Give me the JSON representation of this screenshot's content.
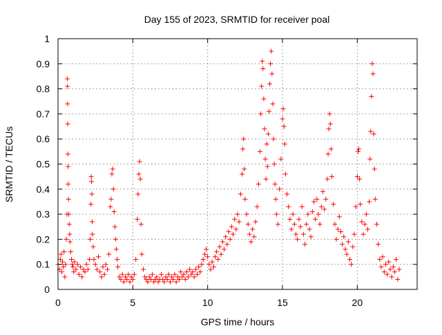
{
  "chart_data": {
    "type": "scatter",
    "title": "Day 155 of 2023, SRMTID for receiver poal",
    "xlabel": "GPS time / hours",
    "ylabel": "SRMTID / TECUs",
    "xlim": [
      0,
      24
    ],
    "ylim": [
      0,
      1
    ],
    "x_ticks": [
      0,
      5,
      10,
      15,
      20
    ],
    "x_tick_labels": [
      "0",
      "5",
      "10",
      "15",
      "20"
    ],
    "y_ticks": [
      0,
      0.1,
      0.2,
      0.3,
      0.4,
      0.5,
      0.6,
      0.7,
      0.8,
      0.9,
      1
    ],
    "y_tick_labels": [
      "0",
      "0.1",
      "0.2",
      "0.3",
      "0.4",
      "0.5",
      "0.6",
      "0.7",
      "0.8",
      "0.9",
      "1"
    ],
    "grid": true,
    "marker": "+",
    "color": "#ff0000",
    "series": [
      {
        "name": "SRMTID",
        "points": [
          [
            0.0,
            0.1
          ],
          [
            0.1,
            0.08
          ],
          [
            0.15,
            0.12
          ],
          [
            0.2,
            0.14
          ],
          [
            0.25,
            0.07
          ],
          [
            0.3,
            0.11
          ],
          [
            0.35,
            0.09
          ],
          [
            0.4,
            0.15
          ],
          [
            0.45,
            0.05
          ],
          [
            0.5,
            0.1
          ],
          [
            0.55,
            0.2
          ],
          [
            0.6,
            0.3
          ],
          [
            0.62,
            0.84
          ],
          [
            0.63,
            0.81
          ],
          [
            0.64,
            0.74
          ],
          [
            0.65,
            0.66
          ],
          [
            0.66,
            0.54
          ],
          [
            0.67,
            0.49
          ],
          [
            0.68,
            0.42
          ],
          [
            0.7,
            0.36
          ],
          [
            0.72,
            0.3
          ],
          [
            0.75,
            0.26
          ],
          [
            0.78,
            0.22
          ],
          [
            0.8,
            0.19
          ],
          [
            0.85,
            0.15
          ],
          [
            0.9,
            0.12
          ],
          [
            0.95,
            0.1
          ],
          [
            1.0,
            0.09
          ],
          [
            1.05,
            0.07
          ],
          [
            1.1,
            0.11
          ],
          [
            1.2,
            0.08
          ],
          [
            1.3,
            0.1
          ],
          [
            1.4,
            0.06
          ],
          [
            1.5,
            0.09
          ],
          [
            1.6,
            0.05
          ],
          [
            1.7,
            0.08
          ],
          [
            1.8,
            0.07
          ],
          [
            1.9,
            0.1
          ],
          [
            2.0,
            0.08
          ],
          [
            2.1,
            0.12
          ],
          [
            2.15,
            0.2
          ],
          [
            2.2,
            0.34
          ],
          [
            2.22,
            0.45
          ],
          [
            2.24,
            0.43
          ],
          [
            2.26,
            0.38
          ],
          [
            2.28,
            0.27
          ],
          [
            2.3,
            0.22
          ],
          [
            2.35,
            0.17
          ],
          [
            2.4,
            0.12
          ],
          [
            2.5,
            0.1
          ],
          [
            2.6,
            0.08
          ],
          [
            2.7,
            0.13
          ],
          [
            2.8,
            0.07
          ],
          [
            2.9,
            0.05
          ],
          [
            3.0,
            0.09
          ],
          [
            3.1,
            0.06
          ],
          [
            3.2,
            0.1
          ],
          [
            3.3,
            0.08
          ],
          [
            3.4,
            0.14
          ],
          [
            3.5,
            0.33
          ],
          [
            3.55,
            0.36
          ],
          [
            3.6,
            0.46
          ],
          [
            3.65,
            0.48
          ],
          [
            3.7,
            0.4
          ],
          [
            3.75,
            0.31
          ],
          [
            3.8,
            0.25
          ],
          [
            3.85,
            0.2
          ],
          [
            3.9,
            0.16
          ],
          [
            3.95,
            0.12
          ],
          [
            4.0,
            0.09
          ],
          [
            4.1,
            0.05
          ],
          [
            4.2,
            0.04
          ],
          [
            4.3,
            0.06
          ],
          [
            4.4,
            0.03
          ],
          [
            4.5,
            0.05
          ],
          [
            4.6,
            0.04
          ],
          [
            4.7,
            0.06
          ],
          [
            4.8,
            0.03
          ],
          [
            4.9,
            0.05
          ],
          [
            5.0,
            0.04
          ],
          [
            5.1,
            0.06
          ],
          [
            5.2,
            0.12
          ],
          [
            5.3,
            0.28
          ],
          [
            5.35,
            0.38
          ],
          [
            5.4,
            0.46
          ],
          [
            5.45,
            0.51
          ],
          [
            5.5,
            0.44
          ],
          [
            5.55,
            0.26
          ],
          [
            5.6,
            0.14
          ],
          [
            5.7,
            0.08
          ],
          [
            5.8,
            0.05
          ],
          [
            5.9,
            0.04
          ],
          [
            6.0,
            0.03
          ],
          [
            6.1,
            0.05
          ],
          [
            6.2,
            0.04
          ],
          [
            6.3,
            0.06
          ],
          [
            6.4,
            0.03
          ],
          [
            6.5,
            0.04
          ],
          [
            6.6,
            0.05
          ],
          [
            6.7,
            0.03
          ],
          [
            6.8,
            0.04
          ],
          [
            6.9,
            0.06
          ],
          [
            7.0,
            0.04
          ],
          [
            7.1,
            0.03
          ],
          [
            7.2,
            0.05
          ],
          [
            7.3,
            0.04
          ],
          [
            7.4,
            0.06
          ],
          [
            7.5,
            0.03
          ],
          [
            7.6,
            0.05
          ],
          [
            7.7,
            0.04
          ],
          [
            7.8,
            0.06
          ],
          [
            7.9,
            0.03
          ],
          [
            8.0,
            0.05
          ],
          [
            8.1,
            0.04
          ],
          [
            8.2,
            0.07
          ],
          [
            8.3,
            0.05
          ],
          [
            8.4,
            0.06
          ],
          [
            8.5,
            0.04
          ],
          [
            8.6,
            0.07
          ],
          [
            8.7,
            0.05
          ],
          [
            8.8,
            0.08
          ],
          [
            8.9,
            0.06
          ],
          [
            9.0,
            0.07
          ],
          [
            9.1,
            0.05
          ],
          [
            9.2,
            0.08
          ],
          [
            9.3,
            0.06
          ],
          [
            9.4,
            0.09
          ],
          [
            9.5,
            0.07
          ],
          [
            9.6,
            0.1
          ],
          [
            9.7,
            0.12
          ],
          [
            9.8,
            0.14
          ],
          [
            9.9,
            0.16
          ],
          [
            10.0,
            0.13
          ],
          [
            10.1,
            0.1
          ],
          [
            10.2,
            0.08
          ],
          [
            10.3,
            0.11
          ],
          [
            10.4,
            0.09
          ],
          [
            10.5,
            0.13
          ],
          [
            10.6,
            0.15
          ],
          [
            10.7,
            0.12
          ],
          [
            10.8,
            0.17
          ],
          [
            10.9,
            0.14
          ],
          [
            11.0,
            0.19
          ],
          [
            11.1,
            0.16
          ],
          [
            11.2,
            0.21
          ],
          [
            11.3,
            0.18
          ],
          [
            11.4,
            0.23
          ],
          [
            11.5,
            0.2
          ],
          [
            11.6,
            0.25
          ],
          [
            11.7,
            0.22
          ],
          [
            11.8,
            0.28
          ],
          [
            11.9,
            0.24
          ],
          [
            12.0,
            0.3
          ],
          [
            12.1,
            0.27
          ],
          [
            12.2,
            0.38
          ],
          [
            12.3,
            0.46
          ],
          [
            12.35,
            0.56
          ],
          [
            12.4,
            0.6
          ],
          [
            12.45,
            0.48
          ],
          [
            12.5,
            0.36
          ],
          [
            12.6,
            0.3
          ],
          [
            12.7,
            0.26
          ],
          [
            12.8,
            0.22
          ],
          [
            12.9,
            0.19
          ],
          [
            13.0,
            0.24
          ],
          [
            13.1,
            0.21
          ],
          [
            13.2,
            0.27
          ],
          [
            13.3,
            0.33
          ],
          [
            13.4,
            0.42
          ],
          [
            13.5,
            0.55
          ],
          [
            13.55,
            0.7
          ],
          [
            13.6,
            0.81
          ],
          [
            13.65,
            0.91
          ],
          [
            13.7,
            0.88
          ],
          [
            13.75,
            0.76
          ],
          [
            13.8,
            0.64
          ],
          [
            13.85,
            0.52
          ],
          [
            13.9,
            0.44
          ],
          [
            13.95,
            0.58
          ],
          [
            14.0,
            0.49
          ],
          [
            14.05,
            0.62
          ],
          [
            14.1,
            0.71
          ],
          [
            14.15,
            0.82
          ],
          [
            14.2,
            0.9
          ],
          [
            14.25,
            0.95
          ],
          [
            14.3,
            0.86
          ],
          [
            14.35,
            0.74
          ],
          [
            14.4,
            0.6
          ],
          [
            14.45,
            0.5
          ],
          [
            14.5,
            0.42
          ],
          [
            14.55,
            0.36
          ],
          [
            14.6,
            0.3
          ],
          [
            14.7,
            0.26
          ],
          [
            14.8,
            0.4
          ],
          [
            14.9,
            0.52
          ],
          [
            15.0,
            0.68
          ],
          [
            15.05,
            0.72
          ],
          [
            15.1,
            0.65
          ],
          [
            15.15,
            0.58
          ],
          [
            15.2,
            0.46
          ],
          [
            15.3,
            0.38
          ],
          [
            15.4,
            0.33
          ],
          [
            15.5,
            0.28
          ],
          [
            15.6,
            0.24
          ],
          [
            15.7,
            0.3
          ],
          [
            15.8,
            0.26
          ],
          [
            15.9,
            0.22
          ],
          [
            16.0,
            0.2
          ],
          [
            16.1,
            0.28
          ],
          [
            16.2,
            0.25
          ],
          [
            16.3,
            0.33
          ],
          [
            16.4,
            0.22
          ],
          [
            16.5,
            0.18
          ],
          [
            16.6,
            0.26
          ],
          [
            16.7,
            0.3
          ],
          [
            16.8,
            0.24
          ],
          [
            16.9,
            0.21
          ],
          [
            17.0,
            0.31
          ],
          [
            17.1,
            0.35
          ],
          [
            17.2,
            0.28
          ],
          [
            17.3,
            0.36
          ],
          [
            17.4,
            0.3
          ],
          [
            17.5,
            0.26
          ],
          [
            17.6,
            0.33
          ],
          [
            17.7,
            0.39
          ],
          [
            17.8,
            0.32
          ],
          [
            17.9,
            0.36
          ],
          [
            18.0,
            0.44
          ],
          [
            18.05,
            0.54
          ],
          [
            18.1,
            0.64
          ],
          [
            18.15,
            0.7
          ],
          [
            18.2,
            0.66
          ],
          [
            18.25,
            0.56
          ],
          [
            18.3,
            0.45
          ],
          [
            18.4,
            0.34
          ],
          [
            18.5,
            0.26
          ],
          [
            18.6,
            0.2
          ],
          [
            18.7,
            0.24
          ],
          [
            18.8,
            0.29
          ],
          [
            18.9,
            0.23
          ],
          [
            19.0,
            0.18
          ],
          [
            19.1,
            0.21
          ],
          [
            19.2,
            0.16
          ],
          [
            19.3,
            0.14
          ],
          [
            19.4,
            0.19
          ],
          [
            19.5,
            0.12
          ],
          [
            19.6,
            0.1
          ],
          [
            19.7,
            0.17
          ],
          [
            19.8,
            0.22
          ],
          [
            19.9,
            0.33
          ],
          [
            20.0,
            0.45
          ],
          [
            20.05,
            0.55
          ],
          [
            20.1,
            0.56
          ],
          [
            20.15,
            0.44
          ],
          [
            20.2,
            0.34
          ],
          [
            20.3,
            0.27
          ],
          [
            20.4,
            0.22
          ],
          [
            20.5,
            0.26
          ],
          [
            20.6,
            0.3
          ],
          [
            20.7,
            0.24
          ],
          [
            20.8,
            0.35
          ],
          [
            20.85,
            0.52
          ],
          [
            20.9,
            0.63
          ],
          [
            20.95,
            0.77
          ],
          [
            21.0,
            0.9
          ],
          [
            21.05,
            0.86
          ],
          [
            21.1,
            0.62
          ],
          [
            21.15,
            0.48
          ],
          [
            21.2,
            0.36
          ],
          [
            21.3,
            0.26
          ],
          [
            21.4,
            0.18
          ],
          [
            21.5,
            0.12
          ],
          [
            21.6,
            0.09
          ],
          [
            21.7,
            0.13
          ],
          [
            21.8,
            0.07
          ],
          [
            21.9,
            0.1
          ],
          [
            22.0,
            0.06
          ],
          [
            22.1,
            0.11
          ],
          [
            22.2,
            0.08
          ],
          [
            22.3,
            0.05
          ],
          [
            22.4,
            0.09
          ],
          [
            22.5,
            0.07
          ],
          [
            22.6,
            0.12
          ],
          [
            22.7,
            0.04
          ],
          [
            22.8,
            0.08
          ]
        ]
      }
    ]
  }
}
